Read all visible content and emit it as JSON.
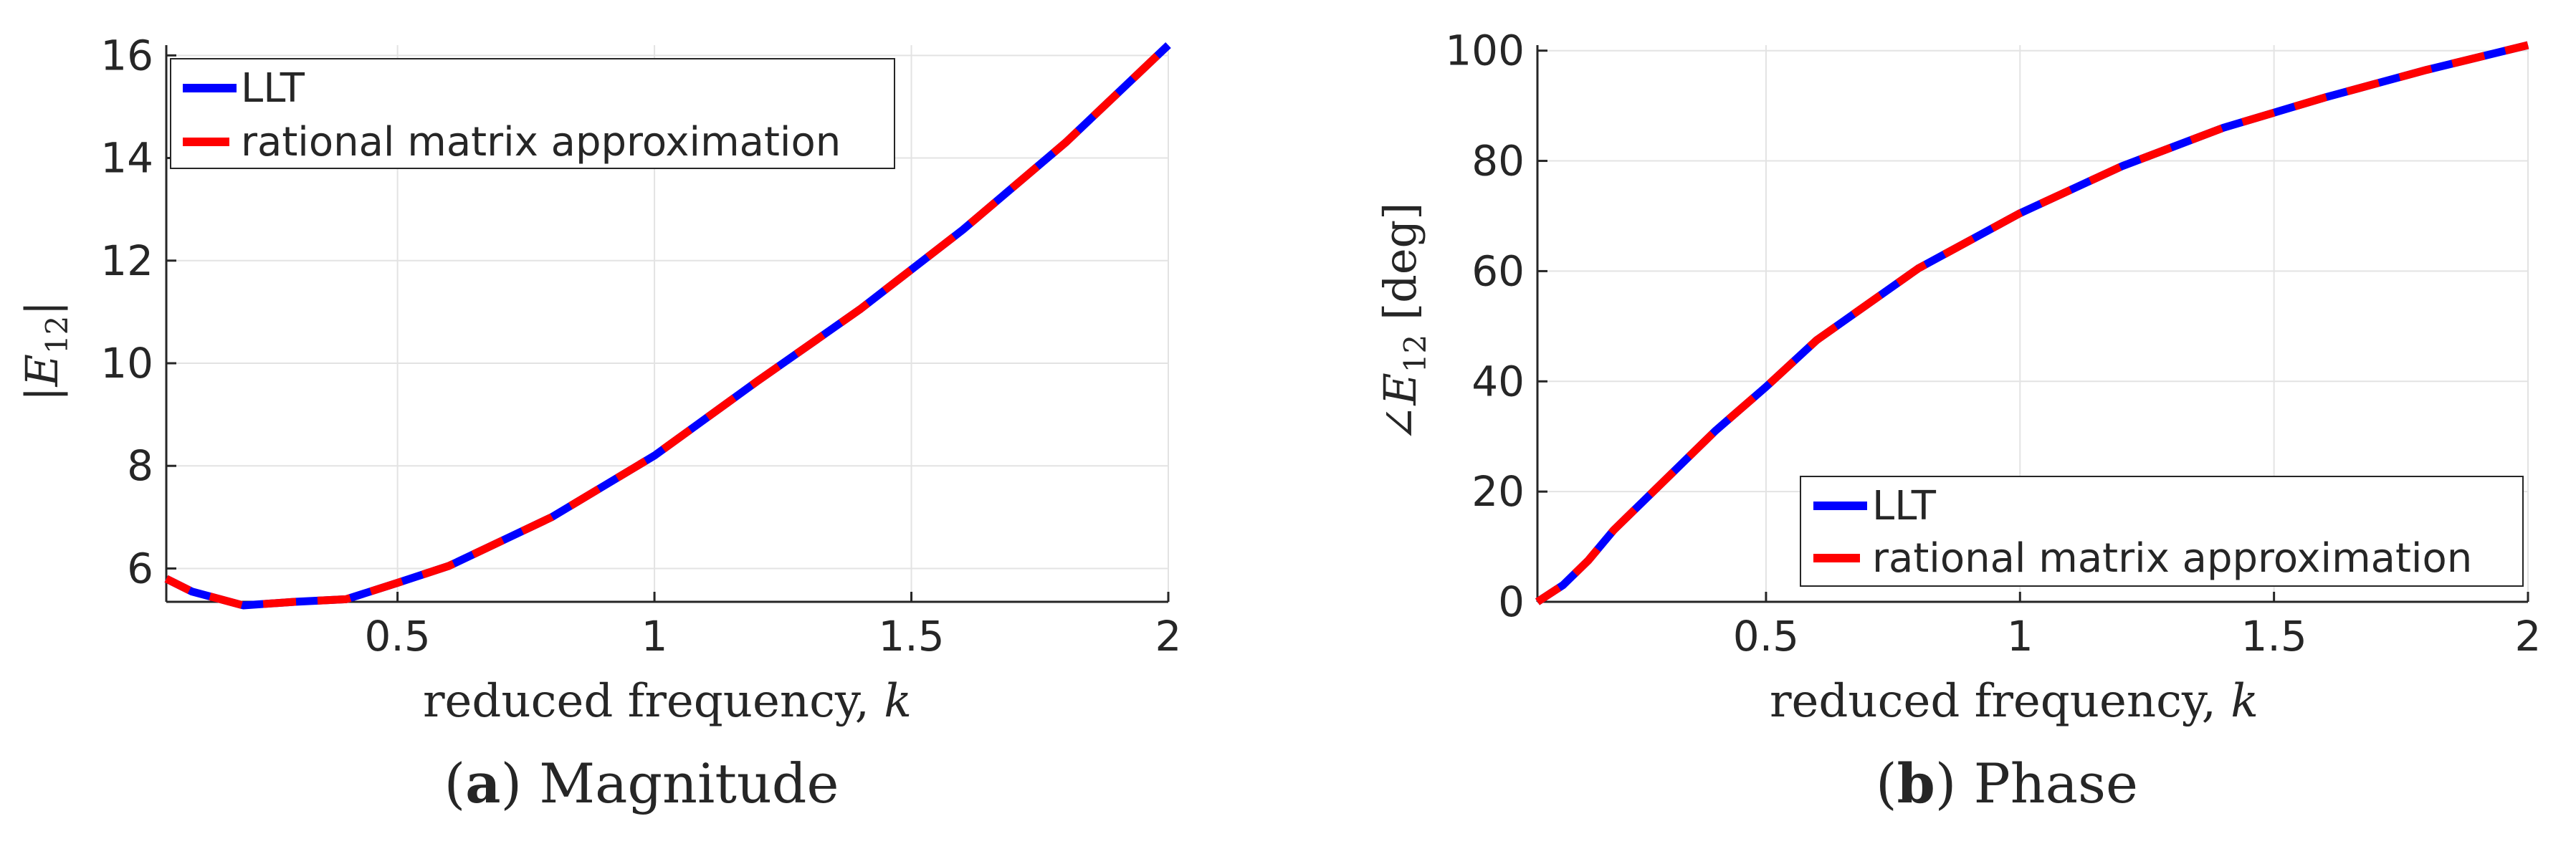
{
  "colors": {
    "llt": "#0000ff",
    "rational": "#ff0000",
    "grid": "#e3e3e3",
    "axis": "#262626",
    "text": "#262626"
  },
  "chart_data": [
    {
      "type": "line",
      "caption_letter": "a",
      "caption_text": "Magnitude",
      "xlabel_text": "reduced frequency, ",
      "xlabel_var": "k",
      "ylabel": "|E12|",
      "xlim": [
        0.05,
        2
      ],
      "ylim": [
        5.35,
        16.2
      ],
      "xticks": [
        0.5,
        1,
        1.5,
        2
      ],
      "xtick_labels": [
        "0.5",
        "1",
        "1.5",
        "2"
      ],
      "yticks": [
        6,
        8,
        10,
        12,
        14,
        16
      ],
      "ytick_labels": [
        "6",
        "8",
        "10",
        "12",
        "14",
        "16"
      ],
      "grid": true,
      "legend_position": "top-left",
      "series": [
        {
          "name": "LLT",
          "color": "#0000ff",
          "style": "solid",
          "x": [
            0.05,
            0.1,
            0.2,
            0.3,
            0.4,
            0.5,
            0.6,
            0.8,
            1.0,
            1.2,
            1.4,
            1.6,
            1.8,
            2.0
          ],
          "y": [
            5.8,
            5.55,
            5.28,
            5.35,
            5.4,
            5.72,
            6.05,
            7.0,
            8.2,
            9.65,
            11.05,
            12.6,
            14.3,
            16.2
          ]
        },
        {
          "name": "rational matrix approximation",
          "color": "#ff0000",
          "style": "dashed",
          "x": [
            0.05,
            0.1,
            0.2,
            0.3,
            0.4,
            0.5,
            0.6,
            0.8,
            1.0,
            1.2,
            1.4,
            1.6,
            1.8,
            2.0
          ],
          "y": [
            5.8,
            5.55,
            5.28,
            5.35,
            5.4,
            5.72,
            6.05,
            7.0,
            8.2,
            9.65,
            11.05,
            12.6,
            14.3,
            16.2
          ]
        }
      ]
    },
    {
      "type": "line",
      "caption_letter": "b",
      "caption_text": "Phase",
      "xlabel_text": "reduced frequency, ",
      "xlabel_var": "k",
      "ylabel": "∠E12 [deg]",
      "xlim": [
        0.05,
        2
      ],
      "ylim": [
        0,
        101
      ],
      "xticks": [
        0.5,
        1,
        1.5,
        2
      ],
      "xtick_labels": [
        "0.5",
        "1",
        "1.5",
        "2"
      ],
      "yticks": [
        0,
        20,
        40,
        60,
        80,
        100
      ],
      "ytick_labels": [
        "0",
        "20",
        "40",
        "60",
        "80",
        "100"
      ],
      "grid": true,
      "legend_position": "bottom-right",
      "series": [
        {
          "name": "LLT",
          "color": "#0000ff",
          "style": "solid",
          "x": [
            0.05,
            0.1,
            0.15,
            0.2,
            0.3,
            0.4,
            0.5,
            0.6,
            0.8,
            1.0,
            1.2,
            1.4,
            1.6,
            1.8,
            2.0
          ],
          "y": [
            0,
            3,
            7.5,
            13,
            22,
            31,
            39,
            47.5,
            60.5,
            70.5,
            79,
            86,
            91.5,
            96.5,
            101
          ]
        },
        {
          "name": "rational matrix approximation",
          "color": "#ff0000",
          "style": "dashed",
          "x": [
            0.05,
            0.1,
            0.15,
            0.2,
            0.3,
            0.4,
            0.5,
            0.6,
            0.8,
            1.0,
            1.2,
            1.4,
            1.6,
            1.8,
            2.0
          ],
          "y": [
            0,
            3,
            7.5,
            13,
            22,
            31,
            39,
            47.5,
            60.5,
            70.5,
            79,
            86,
            91.5,
            96.5,
            101
          ]
        }
      ]
    }
  ]
}
